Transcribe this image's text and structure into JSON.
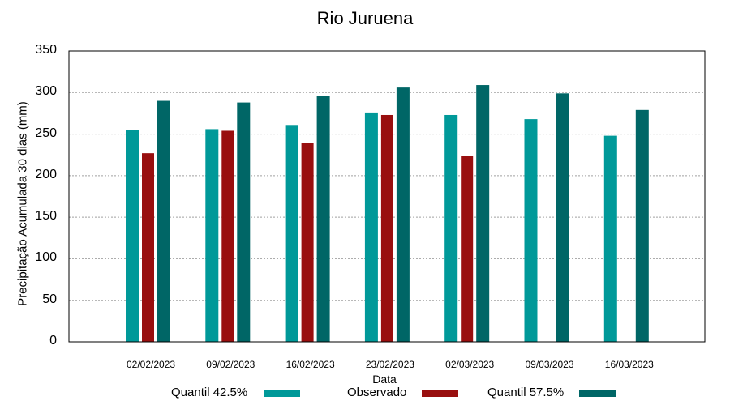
{
  "chart_data": {
    "type": "bar",
    "title": "Rio Juruena",
    "xlabel": "Data",
    "ylabel": "Precipitação Acumulada 30 dias (mm)",
    "ylim": [
      0,
      350
    ],
    "yticks": [
      0,
      50,
      100,
      150,
      200,
      250,
      300,
      350
    ],
    "grid": true,
    "legend_position": "bottom",
    "categories": [
      "02/02/2023",
      "09/02/2023",
      "16/02/2023",
      "23/02/2023",
      "02/03/2023",
      "09/03/2023",
      "16/03/2023"
    ],
    "series": [
      {
        "name": "Quantil 42.5%",
        "color": "#009999",
        "values": [
          255,
          256,
          261,
          276,
          273,
          268,
          248
        ]
      },
      {
        "name": "Observado",
        "color": "#990f0f",
        "values": [
          227,
          254,
          239,
          273,
          224,
          null,
          null
        ]
      },
      {
        "name": "Quantil 57.5%",
        "color": "#006666",
        "values": [
          290,
          288,
          296,
          306,
          309,
          299,
          279
        ]
      }
    ]
  }
}
